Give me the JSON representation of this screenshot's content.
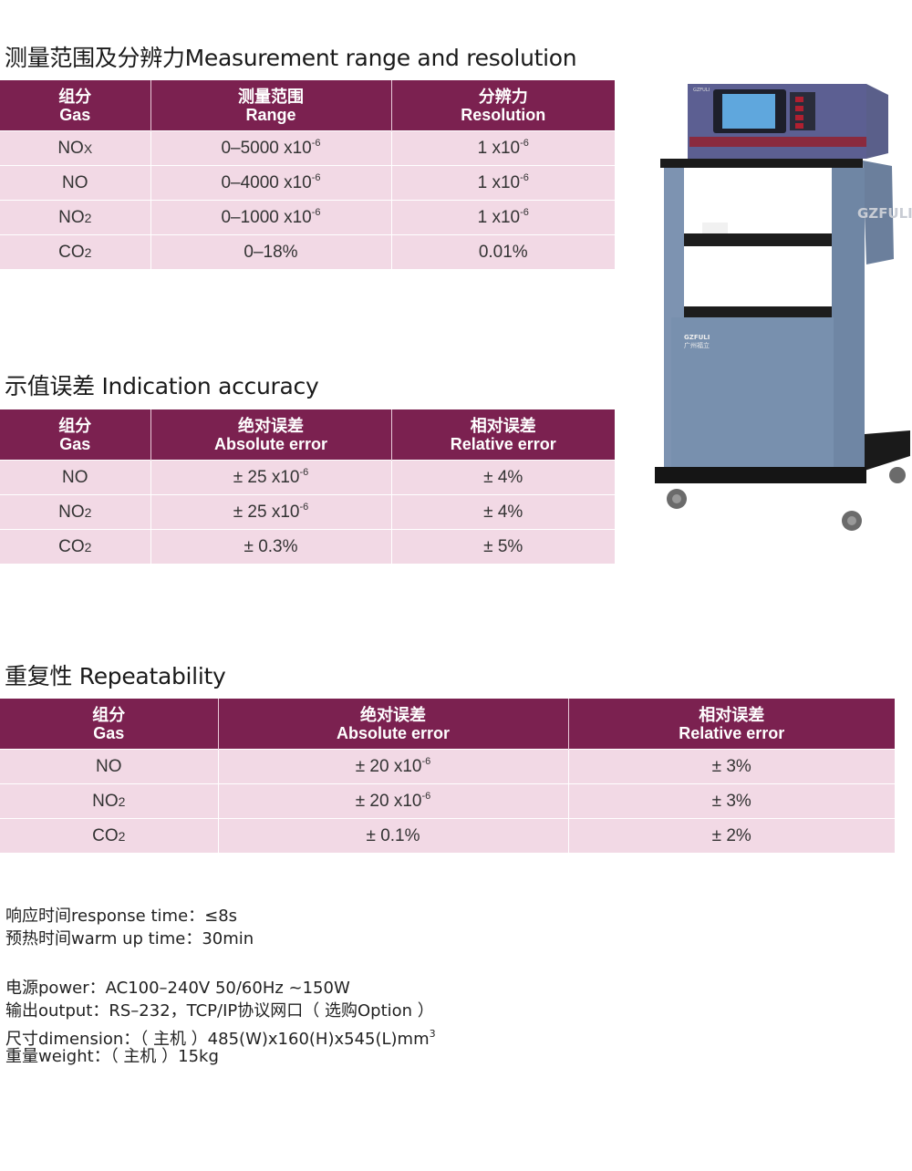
{
  "sections": [
    {
      "title": "测量范围及分辨力Measurement range and resolution",
      "headers": [
        [
          "组分",
          "Gas"
        ],
        [
          "测量范围",
          "Range"
        ],
        [
          "分辨力",
          "Resolution"
        ]
      ],
      "rows": [
        [
          {
            "t": "NO",
            "sub": "X"
          },
          {
            "t": "0–5000 x10",
            "sup": "-6"
          },
          {
            "t": "1 x10",
            "sup": "-6"
          }
        ],
        [
          {
            "t": "NO"
          },
          {
            "t": "0–4000 x10",
            "sup": "-6"
          },
          {
            "t": "1 x10",
            "sup": "-6"
          }
        ],
        [
          {
            "t": "NO",
            "sub": "2"
          },
          {
            "t": "0–1000 x10",
            "sup": "-6"
          },
          {
            "t": "1 x10",
            "sup": "-6"
          }
        ],
        [
          {
            "t": "CO",
            "sub": "2"
          },
          {
            "t": "0–18%"
          },
          {
            "t": "0.01%"
          }
        ]
      ]
    },
    {
      "title": "示值误差 Indication accuracy",
      "headers": [
        [
          "组分",
          "Gas"
        ],
        [
          "绝对误差",
          "Absolute error"
        ],
        [
          "相对误差",
          "Relative error"
        ]
      ],
      "rows": [
        [
          {
            "t": "NO"
          },
          {
            "t": "± 25 x10",
            "sup": "-6"
          },
          {
            "t": "± 4%"
          }
        ],
        [
          {
            "t": "NO",
            "sub": "2"
          },
          {
            "t": "± 25 x10",
            "sup": "-6"
          },
          {
            "t": "± 4%"
          }
        ],
        [
          {
            "t": "CO",
            "sub": "2"
          },
          {
            "t": "± 0.3%"
          },
          {
            "t": "± 5%"
          }
        ]
      ]
    },
    {
      "title": "重复性 Repeatability",
      "headers": [
        [
          "组分",
          "Gas"
        ],
        [
          "绝对误差",
          "Absolute error"
        ],
        [
          "相对误差",
          "Relative error"
        ]
      ],
      "rows": [
        [
          {
            "t": "NO"
          },
          {
            "t": "± 20 x10",
            "sup": "-6"
          },
          {
            "t": "± 3%"
          }
        ],
        [
          {
            "t": "NO",
            "sub": "2"
          },
          {
            "t": "± 20 x10",
            "sup": "-6"
          },
          {
            "t": "± 3%"
          }
        ],
        [
          {
            "t": "CO",
            "sub": "2"
          },
          {
            "t": "± 0.1%"
          },
          {
            "t": "± 2%"
          }
        ]
      ]
    }
  ],
  "notes": {
    "response_time": "响应时间response time：≤8s",
    "warm_up_time": "预热时间warm up time：30min",
    "power": "电源power：AC100–240V 50/60Hz ~150W",
    "output": "输出output：RS–232，TCP/IP协议网口（ 选购Option ）",
    "dimension": "尺寸dimension：（ 主机 ）485(W)x160(H)x545(L)mm",
    "dimension_sup": "3",
    "weight": "重量weight：（ 主机 ）15kg"
  },
  "product": {
    "brand": "GZFULI",
    "brand_cn": "广州福立"
  },
  "colors": {
    "header": "#7b2150",
    "row": "#f2d9e5",
    "cabinet": "#6f86a4"
  }
}
